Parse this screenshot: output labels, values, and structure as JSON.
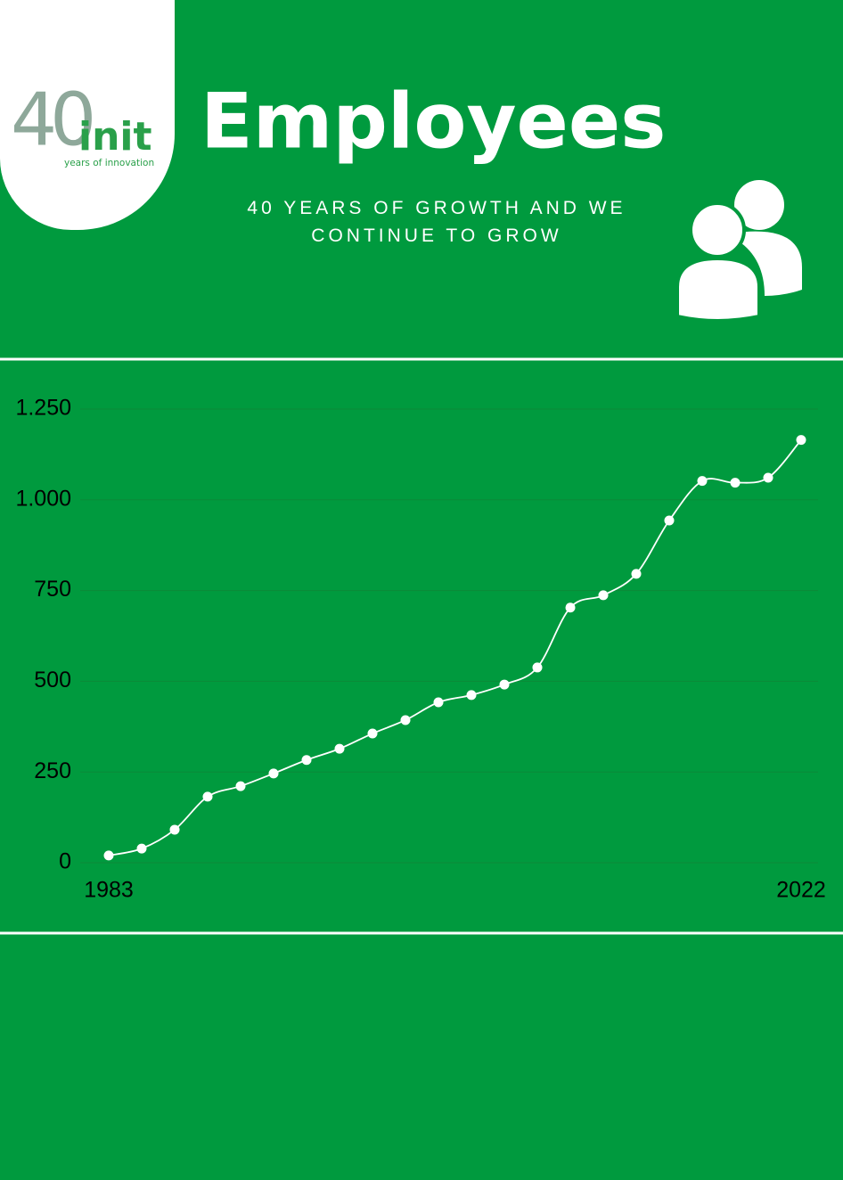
{
  "logo": {
    "number": "40",
    "name": "init",
    "tagline": "years of innovation"
  },
  "header": {
    "title": "Employees",
    "subtitle": "40 YEARS OF GROWTH AND WE CONTINUE TO GROW"
  },
  "chart_data": {
    "type": "line",
    "categories": [
      "1983",
      null,
      null,
      null,
      null,
      null,
      null,
      null,
      null,
      null,
      null,
      null,
      null,
      null,
      null,
      null,
      null,
      null,
      null,
      null,
      null,
      "2022"
    ],
    "values": [
      20,
      39,
      91,
      182,
      211,
      246,
      283,
      314,
      356,
      393,
      442,
      462,
      491,
      538,
      703,
      737,
      796,
      943,
      1052,
      1047,
      1061,
      1165
    ],
    "color": "#ffffff",
    "ylim": [
      0,
      1250
    ],
    "yticks": [
      0,
      250,
      500,
      750,
      {
        "value": 1000,
        "label": "1.000"
      },
      {
        "value": 1250,
        "label": "1.250"
      }
    ],
    "grid": true
  }
}
